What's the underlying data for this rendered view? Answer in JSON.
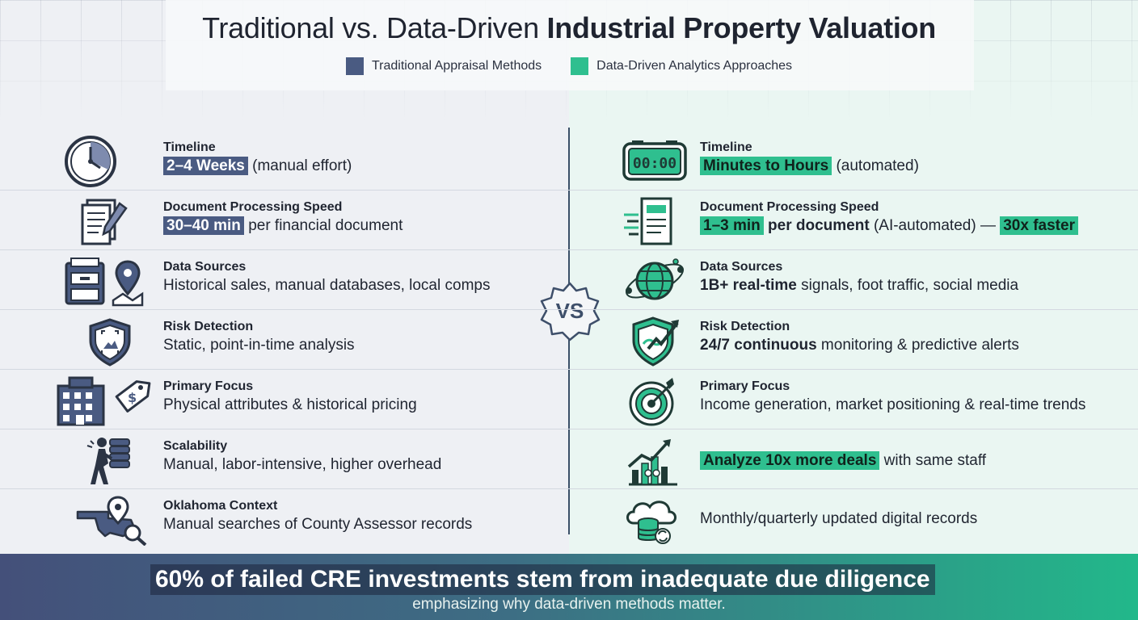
{
  "title_part1": "Traditional vs. Data-Driven",
  "title_part2": "Industrial Property Valuation",
  "legend": {
    "left": {
      "label": "Traditional Appraisal Methods",
      "color": "#4a5b82"
    },
    "right": {
      "label": "Data-Driven Analytics Approaches",
      "color": "#2fbf8f"
    }
  },
  "vs_label": "VS",
  "traditional": [
    {
      "icon": "clock-icon",
      "label": "Timeline",
      "highlight": "2–4 Weeks",
      "rest": "(manual effort)"
    },
    {
      "icon": "document-pen-icon",
      "label": "Document Processing Speed",
      "highlight": "30–40 min",
      "rest": "per financial document"
    },
    {
      "icon": "file-cabinet-map-pin-icon",
      "label": "Data Sources",
      "text": "Historical sales, manual databases, local comps"
    },
    {
      "icon": "shield-icon",
      "label": "Risk Detection",
      "text": "Static, point-in-time analysis"
    },
    {
      "icon": "building-price-tag-icon",
      "label": "Primary Focus",
      "text": "Physical attributes & historical pricing"
    },
    {
      "icon": "person-carrying-stack-icon",
      "label": "Scalability",
      "text": "Manual, labor-intensive, higher overhead"
    },
    {
      "icon": "oklahoma-map-magnifier-icon",
      "label": "Oklahoma Context",
      "text": "Manual searches of County Assessor records"
    }
  ],
  "data_driven": [
    {
      "icon": "digital-clock-icon",
      "label": "Timeline",
      "highlight": "Minutes to Hours",
      "rest": "(automated)"
    },
    {
      "icon": "document-scan-icon",
      "label": "Document Processing Speed",
      "highlight": "1–3 min",
      "bold": "per document",
      "rest": "(AI-automated) —",
      "highlight2": "30x faster"
    },
    {
      "icon": "globe-network-icon",
      "label": "Data Sources",
      "bold": "1B+ real-time",
      "rest": "signals, foot traffic, social media"
    },
    {
      "icon": "shield-trend-icon",
      "label": "Risk Detection",
      "bold": "24/7 continuous",
      "rest": "monitoring & predictive alerts"
    },
    {
      "icon": "target-arrow-icon",
      "label": "Primary Focus",
      "text": "Income generation, market positioning & real-time trends"
    },
    {
      "icon": "growth-chart-people-icon",
      "label": "",
      "highlight": "Analyze 10x more deals",
      "rest": "with same staff"
    },
    {
      "icon": "cloud-database-sync-icon",
      "label": "",
      "text": "Monthly/quarterly updated digital records"
    }
  ],
  "footer": {
    "headline": "60% of failed CRE investments stem from inadequate due diligence",
    "sub": "emphasizing why data-driven methods matter."
  }
}
